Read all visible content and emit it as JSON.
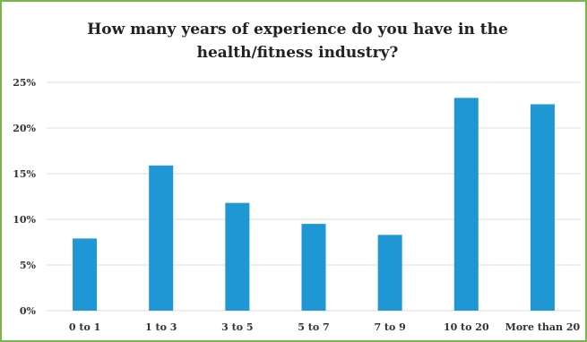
{
  "chart_data": {
    "type": "bar",
    "title": "How many years of experience do you have in the health/fitness industry?",
    "categories": [
      "0 to 1",
      "1 to 3",
      "3 to 5",
      "5 to 7",
      "7 to 9",
      "10 to 20",
      "More than 20"
    ],
    "values": [
      7.9,
      15.9,
      11.8,
      9.5,
      8.3,
      23.3,
      22.6
    ],
    "ylim": [
      0,
      25
    ],
    "yticks": [
      0,
      5,
      10,
      15,
      20,
      25
    ],
    "ytick_labels": [
      "0%",
      "5%",
      "10%",
      "15%",
      "20%",
      "25%"
    ],
    "grid": true,
    "legend": "none",
    "bar_color": "#1f97d4",
    "frame_color": "#7ab648"
  }
}
